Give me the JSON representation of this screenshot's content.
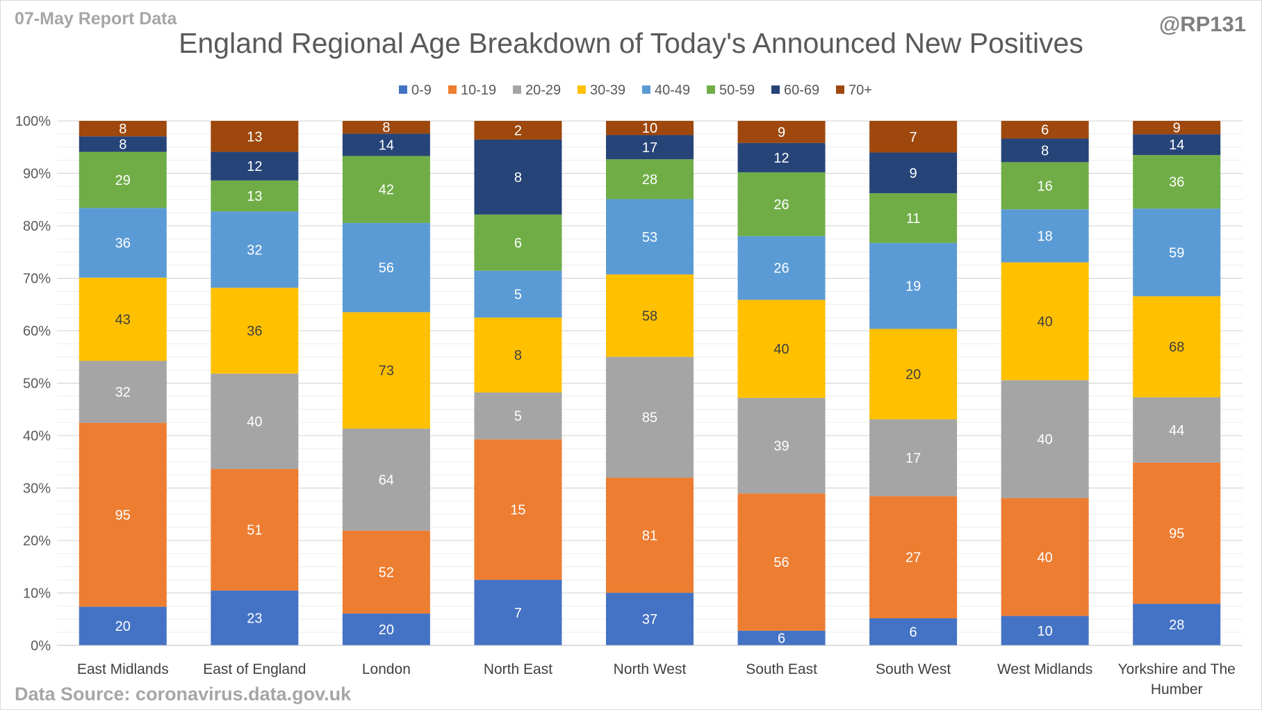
{
  "header": {
    "report_label": "07-May Report Data",
    "handle": "@RP131"
  },
  "footer": {
    "source": "Data Source: coronavirus.data.gov.uk"
  },
  "chart_data": {
    "type": "bar",
    "stacked": "percent",
    "title": "England Regional Age Breakdown of Today's Announced New Positives",
    "xlabel": "",
    "ylabel": "",
    "ylim": [
      0,
      100
    ],
    "yticks": [
      "0%",
      "10%",
      "20%",
      "30%",
      "40%",
      "50%",
      "60%",
      "70%",
      "80%",
      "90%",
      "100%"
    ],
    "legend_position": "top",
    "grid": true,
    "categories": [
      [
        "East Midlands"
      ],
      [
        "East of England"
      ],
      [
        "London"
      ],
      [
        "North East"
      ],
      [
        "North West"
      ],
      [
        "South East"
      ],
      [
        "South West"
      ],
      [
        "West Midlands"
      ],
      [
        "Yorkshire and The",
        "Humber"
      ]
    ],
    "series": [
      {
        "name": "0-9",
        "color": "#4472c4",
        "label_color": "#ffffff",
        "values": [
          20,
          23,
          20,
          7,
          37,
          6,
          6,
          10,
          28
        ]
      },
      {
        "name": "10-19",
        "color": "#ed7d31",
        "label_color": "#ffffff",
        "values": [
          95,
          51,
          52,
          15,
          81,
          56,
          27,
          40,
          95
        ]
      },
      {
        "name": "20-29",
        "color": "#a5a5a5",
        "label_color": "#ffffff",
        "values": [
          32,
          40,
          64,
          5,
          85,
          39,
          17,
          40,
          44
        ]
      },
      {
        "name": "30-39",
        "color": "#ffc000",
        "label_color": "#404040",
        "values": [
          43,
          36,
          73,
          8,
          58,
          40,
          20,
          40,
          68
        ]
      },
      {
        "name": "40-49",
        "color": "#5b9bd5",
        "label_color": "#ffffff",
        "values": [
          36,
          32,
          56,
          5,
          53,
          26,
          19,
          18,
          59
        ]
      },
      {
        "name": "50-59",
        "color": "#70ad47",
        "label_color": "#ffffff",
        "values": [
          29,
          13,
          42,
          6,
          28,
          26,
          11,
          16,
          36
        ]
      },
      {
        "name": "60-69",
        "color": "#264478",
        "label_color": "#ffffff",
        "values": [
          8,
          12,
          14,
          8,
          17,
          12,
          9,
          8,
          14
        ]
      },
      {
        "name": "70+",
        "color": "#9e480e",
        "label_color": "#ffffff",
        "values": [
          8,
          13,
          8,
          2,
          10,
          9,
          7,
          6,
          9
        ]
      }
    ]
  }
}
